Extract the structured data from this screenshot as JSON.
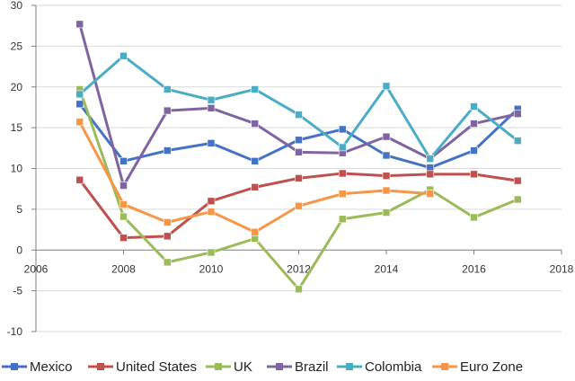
{
  "chart_data": {
    "type": "line",
    "title": "",
    "xlabel": "",
    "ylabel": "",
    "xlim": [
      2006,
      2018
    ],
    "ylim": [
      -10,
      30
    ],
    "x_ticks": [
      2006,
      2008,
      2010,
      2012,
      2014,
      2016,
      2018
    ],
    "y_ticks": [
      -10,
      -5,
      0,
      5,
      10,
      15,
      20,
      25,
      30
    ],
    "x_tick_labels": [
      "2006",
      "2008",
      "2010",
      "2012",
      "2014",
      "2016",
      "2018"
    ],
    "y_tick_labels": [
      "-10",
      "-5",
      "0",
      "5",
      "10",
      "15",
      "20",
      "25",
      "30"
    ],
    "grid": "horizontal",
    "legend_position": "bottom",
    "x": [
      2007,
      2008,
      2009,
      2010,
      2011,
      2012,
      2013,
      2014,
      2015,
      2016,
      2017
    ],
    "series": [
      {
        "name": "Mexico",
        "color": "#4472C4",
        "values": [
          17.9,
          10.9,
          12.2,
          13.1,
          10.9,
          13.5,
          14.8,
          11.6,
          10.1,
          12.2,
          17.3
        ]
      },
      {
        "name": "United States",
        "color": "#C0504D",
        "values": [
          8.6,
          1.5,
          1.7,
          6.0,
          7.7,
          8.8,
          9.4,
          9.1,
          9.3,
          9.3,
          8.5
        ]
      },
      {
        "name": "UK",
        "color": "#9BBB59",
        "values": [
          19.7,
          4.1,
          -1.5,
          -0.3,
          1.4,
          -4.8,
          3.8,
          4.6,
          7.4,
          4.0,
          6.2
        ]
      },
      {
        "name": "Brazil",
        "color": "#8064A2",
        "values": [
          27.7,
          7.9,
          17.1,
          17.4,
          15.5,
          12.0,
          11.9,
          13.9,
          11.2,
          15.5,
          16.7
        ]
      },
      {
        "name": "Colombia",
        "color": "#4BACC6",
        "values": [
          19.1,
          23.8,
          19.7,
          18.4,
          19.7,
          16.6,
          12.6,
          20.1,
          11.2,
          17.6,
          13.4
        ]
      },
      {
        "name": "Euro Zone",
        "color": "#F79646",
        "values": [
          15.7,
          5.6,
          3.4,
          4.7,
          2.2,
          5.4,
          6.9,
          7.3,
          6.9,
          null,
          null
        ]
      }
    ]
  }
}
